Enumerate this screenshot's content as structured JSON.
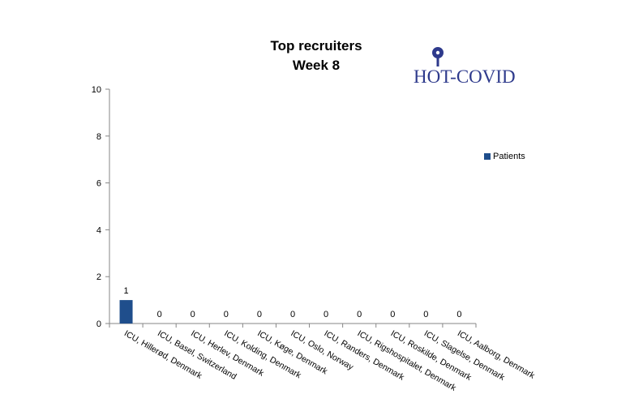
{
  "logo": {
    "text": "HOT-COVID"
  },
  "colors": {
    "series": "#1f4e8c",
    "logo": "#2e3a8c",
    "axis": "#868686"
  },
  "chart_data": {
    "type": "bar",
    "title": "Top recruiters",
    "subtitle": "Week 8",
    "categories": [
      "ICU, Hillerød, Denmark",
      "ICU, Basel, Switzerland",
      "ICU, Herlev, Denmark",
      "ICU, Kolding, Denmark",
      "ICU, Køge, Denmark",
      "ICU, Oslo, Norway",
      "ICU, Randers, Denmark",
      "ICU, Rigshospitalet, Denmark",
      "ICU, Roskilde, Denmark",
      "ICU, Slagelse, Denmark",
      "ICU, Aalborg, Denmark"
    ],
    "series": [
      {
        "name": "Patients",
        "values": [
          1,
          0,
          0,
          0,
          0,
          0,
          0,
          0,
          0,
          0,
          0
        ]
      }
    ],
    "ylim": [
      0,
      10
    ],
    "yticks": [
      0,
      2,
      4,
      6,
      8,
      10
    ],
    "data_labels": true,
    "legend_position": "right",
    "grid": false
  }
}
